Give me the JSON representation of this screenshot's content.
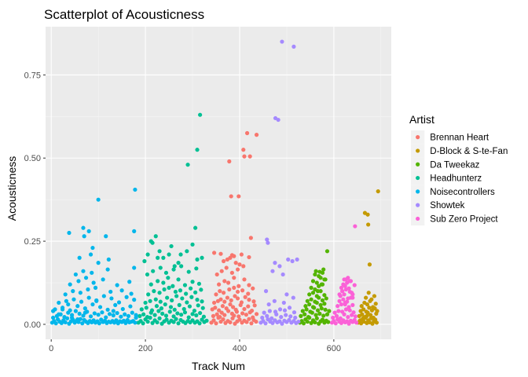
{
  "chart_data": {
    "type": "scatter",
    "title": "Scatterplot of Acousticness",
    "xlabel": "Track Num",
    "ylabel": "Acousticness",
    "xlim": [
      -12,
      722
    ],
    "ylim": [
      -0.045,
      0.895
    ],
    "xticks": [
      0,
      200,
      400,
      600
    ],
    "yticks": [
      0.0,
      0.25,
      0.5,
      0.75
    ],
    "ytick_labels": [
      "0.00",
      "0.25",
      "0.50",
      "0.75"
    ],
    "grid": true,
    "legend": {
      "title": "Artist",
      "position": "right"
    },
    "series": [
      {
        "name": "Brennan Heart",
        "color": "#F8766D",
        "x": [
          340,
          345,
          350,
          355,
          360,
          365,
          370,
          375,
          380,
          385,
          390,
          395,
          400,
          405,
          410,
          415,
          420,
          425,
          430,
          435,
          344,
          352,
          358,
          362,
          368,
          376,
          384,
          388,
          394,
          398,
          406,
          414,
          422,
          428,
          436,
          342,
          348,
          356,
          364,
          372,
          380,
          386,
          392,
          402,
          410,
          418,
          426,
          432,
          346,
          354,
          360,
          368,
          374,
          382,
          390,
          396,
          404,
          412,
          420,
          430,
          350,
          358,
          366,
          378,
          388,
          396,
          406,
          418,
          428,
          356,
          368,
          376,
          388,
          398,
          410,
          420,
          352,
          362,
          372,
          384,
          396,
          408,
          366,
          380,
          392,
          404,
          374,
          388,
          400,
          346,
          360,
          384,
          420,
          378,
          382,
          398,
          408,
          410,
          416,
          422,
          436,
          424
        ],
        "y": [
          0.005,
          0.012,
          0.003,
          0.02,
          0.008,
          0.015,
          0.004,
          0.01,
          0.006,
          0.018,
          0.002,
          0.009,
          0.014,
          0.005,
          0.011,
          0.007,
          0.016,
          0.003,
          0.013,
          0.008,
          0.025,
          0.03,
          0.022,
          0.035,
          0.028,
          0.04,
          0.032,
          0.026,
          0.038,
          0.024,
          0.033,
          0.029,
          0.036,
          0.021,
          0.031,
          0.045,
          0.05,
          0.042,
          0.055,
          0.048,
          0.06,
          0.052,
          0.044,
          0.058,
          0.046,
          0.054,
          0.041,
          0.057,
          0.065,
          0.07,
          0.075,
          0.068,
          0.08,
          0.072,
          0.085,
          0.078,
          0.066,
          0.082,
          0.074,
          0.069,
          0.09,
          0.1,
          0.095,
          0.105,
          0.11,
          0.098,
          0.102,
          0.092,
          0.108,
          0.12,
          0.13,
          0.125,
          0.14,
          0.115,
          0.135,
          0.118,
          0.15,
          0.16,
          0.17,
          0.155,
          0.165,
          0.175,
          0.19,
          0.2,
          0.185,
          0.21,
          0.195,
          0.205,
          0.18,
          0.215,
          0.212,
          0.208,
          0.202,
          0.49,
          0.385,
          0.385,
          0.525,
          0.505,
          0.575,
          0.505,
          0.57,
          0.26
        ]
      },
      {
        "name": "D-Block & S-te-Fan",
        "color": "#C49A00",
        "x": [
          652,
          655,
          658,
          661,
          664,
          667,
          670,
          673,
          676,
          679,
          682,
          685,
          688,
          691,
          654,
          660,
          666,
          672,
          678,
          684,
          690,
          657,
          663,
          669,
          675,
          681,
          687,
          659,
          671,
          683,
          665,
          677,
          689,
          668,
          680,
          686,
          674,
          692,
          656,
          662,
          670,
          673,
          676,
          666,
          672,
          694
        ],
        "y": [
          0.005,
          0.01,
          0.003,
          0.015,
          0.008,
          0.02,
          0.004,
          0.012,
          0.006,
          0.018,
          0.002,
          0.009,
          0.014,
          0.005,
          0.025,
          0.03,
          0.022,
          0.035,
          0.028,
          0.02,
          0.032,
          0.04,
          0.045,
          0.038,
          0.05,
          0.042,
          0.048,
          0.055,
          0.06,
          0.052,
          0.065,
          0.07,
          0.062,
          0.08,
          0.075,
          0.085,
          0.095,
          0.04,
          0.012,
          0.018,
          0.025,
          0.3,
          0.18,
          0.335,
          0.33,
          0.4
        ]
      },
      {
        "name": "Da Tweekaz",
        "color": "#53B400",
        "x": [
          528,
          532,
          536,
          540,
          544,
          548,
          552,
          556,
          560,
          564,
          568,
          572,
          576,
          580,
          584,
          588,
          530,
          538,
          546,
          554,
          562,
          570,
          578,
          586,
          534,
          542,
          550,
          558,
          566,
          574,
          582,
          590,
          540,
          548,
          556,
          564,
          572,
          580,
          544,
          552,
          560,
          568,
          576,
          584,
          548,
          556,
          564,
          572,
          580,
          552,
          560,
          568,
          576,
          556,
          564,
          572,
          580,
          560,
          568,
          576,
          562,
          570,
          578,
          566,
          574,
          582,
          586
        ],
        "y": [
          0.005,
          0.01,
          0.003,
          0.015,
          0.008,
          0.02,
          0.004,
          0.012,
          0.006,
          0.018,
          0.002,
          0.009,
          0.014,
          0.005,
          0.011,
          0.007,
          0.025,
          0.03,
          0.022,
          0.035,
          0.028,
          0.032,
          0.026,
          0.03,
          0.04,
          0.045,
          0.038,
          0.05,
          0.042,
          0.048,
          0.044,
          0.04,
          0.055,
          0.06,
          0.052,
          0.065,
          0.058,
          0.062,
          0.07,
          0.075,
          0.068,
          0.08,
          0.072,
          0.078,
          0.09,
          0.095,
          0.085,
          0.1,
          0.088,
          0.11,
          0.105,
          0.115,
          0.12,
          0.13,
          0.125,
          0.14,
          0.135,
          0.15,
          0.145,
          0.155,
          0.16,
          0.158,
          0.165,
          0.1,
          0.12,
          0.135,
          0.22
        ]
      },
      {
        "name": "Headhunterz",
        "color": "#00C094",
        "x": [
          185,
          190,
          195,
          200,
          205,
          210,
          215,
          220,
          225,
          230,
          235,
          240,
          245,
          250,
          255,
          260,
          265,
          270,
          275,
          280,
          285,
          290,
          295,
          300,
          305,
          310,
          315,
          320,
          325,
          330,
          188,
          196,
          204,
          212,
          220,
          228,
          236,
          244,
          252,
          260,
          268,
          276,
          284,
          292,
          300,
          308,
          316,
          324,
          192,
          202,
          214,
          224,
          234,
          242,
          254,
          262,
          272,
          282,
          294,
          304,
          312,
          322,
          200,
          210,
          222,
          232,
          246,
          256,
          266,
          278,
          288,
          298,
          310,
          320,
          206,
          218,
          230,
          240,
          250,
          264,
          274,
          286,
          296,
          306,
          318,
          212,
          226,
          238,
          248,
          258,
          270,
          284,
          300,
          314,
          204,
          216,
          232,
          244,
          260,
          276,
          292,
          308,
          198,
          226,
          250,
          270,
          288,
          310,
          320,
          205,
          215,
          222,
          230,
          238,
          255,
          262,
          275,
          290,
          300,
          306,
          310,
          316,
          212
        ],
        "y": [
          0.005,
          0.01,
          0.003,
          0.015,
          0.008,
          0.02,
          0.004,
          0.012,
          0.006,
          0.018,
          0.002,
          0.009,
          0.014,
          0.005,
          0.011,
          0.007,
          0.016,
          0.003,
          0.013,
          0.008,
          0.004,
          0.01,
          0.006,
          0.012,
          0.005,
          0.009,
          0.003,
          0.014,
          0.007,
          0.011,
          0.025,
          0.03,
          0.022,
          0.035,
          0.028,
          0.04,
          0.032,
          0.026,
          0.038,
          0.024,
          0.033,
          0.029,
          0.036,
          0.021,
          0.031,
          0.027,
          0.034,
          0.023,
          0.045,
          0.05,
          0.042,
          0.055,
          0.048,
          0.06,
          0.052,
          0.044,
          0.058,
          0.046,
          0.054,
          0.041,
          0.057,
          0.049,
          0.065,
          0.07,
          0.075,
          0.068,
          0.08,
          0.072,
          0.085,
          0.078,
          0.066,
          0.082,
          0.074,
          0.069,
          0.09,
          0.1,
          0.095,
          0.105,
          0.11,
          0.098,
          0.102,
          0.092,
          0.108,
          0.096,
          0.104,
          0.12,
          0.13,
          0.125,
          0.14,
          0.115,
          0.135,
          0.118,
          0.128,
          0.122,
          0.15,
          0.16,
          0.17,
          0.155,
          0.165,
          0.175,
          0.158,
          0.168,
          0.19,
          0.2,
          0.21,
          0.185,
          0.22,
          0.195,
          0.2,
          0.21,
          0.245,
          0.265,
          0.22,
          0.2,
          0.235,
          0.175,
          0.21,
          0.48,
          0.24,
          0.29,
          0.525,
          0.63,
          0.25
        ]
      },
      {
        "name": "Noisecontrollers",
        "color": "#00B6EB",
        "x": [
          2,
          6,
          10,
          14,
          18,
          22,
          26,
          30,
          34,
          38,
          42,
          46,
          50,
          54,
          58,
          62,
          66,
          70,
          74,
          78,
          82,
          86,
          90,
          94,
          98,
          102,
          106,
          110,
          114,
          118,
          122,
          126,
          130,
          134,
          138,
          142,
          146,
          150,
          154,
          158,
          162,
          166,
          170,
          174,
          178,
          4,
          12,
          20,
          28,
          36,
          44,
          52,
          60,
          68,
          76,
          84,
          92,
          100,
          108,
          116,
          124,
          132,
          140,
          148,
          156,
          164,
          172,
          180,
          8,
          24,
          40,
          56,
          72,
          88,
          104,
          120,
          136,
          152,
          168,
          16,
          32,
          48,
          64,
          80,
          96,
          112,
          128,
          144,
          160,
          176,
          30,
          46,
          62,
          78,
          94,
          126,
          150,
          170,
          40,
          58,
          74,
          90,
          110,
          140,
          166,
          52,
          68,
          86,
          120,
          176,
          60,
          84,
          100,
          122,
          38,
          88,
          68,
          80,
          70,
          116,
          176,
          100,
          178,
          4,
          16,
          24,
          36,
          44,
          56,
          72,
          96,
          132,
          180
        ],
        "y": [
          0.005,
          0.01,
          0.003,
          0.015,
          0.008,
          0.004,
          0.012,
          0.006,
          0.018,
          0.002,
          0.009,
          0.014,
          0.005,
          0.011,
          0.007,
          0.016,
          0.003,
          0.013,
          0.008,
          0.004,
          0.01,
          0.006,
          0.012,
          0.005,
          0.009,
          0.003,
          0.014,
          0.007,
          0.011,
          0.004,
          0.008,
          0.006,
          0.01,
          0.005,
          0.012,
          0.003,
          0.009,
          0.007,
          0.011,
          0.004,
          0.013,
          0.006,
          0.008,
          0.01,
          0.005,
          0.02,
          0.025,
          0.03,
          0.022,
          0.035,
          0.028,
          0.04,
          0.032,
          0.026,
          0.038,
          0.024,
          0.033,
          0.029,
          0.036,
          0.021,
          0.031,
          0.027,
          0.034,
          0.023,
          0.03,
          0.025,
          0.035,
          0.028,
          0.045,
          0.05,
          0.042,
          0.055,
          0.048,
          0.06,
          0.052,
          0.044,
          0.058,
          0.046,
          0.054,
          0.065,
          0.07,
          0.075,
          0.068,
          0.08,
          0.072,
          0.085,
          0.078,
          0.066,
          0.082,
          0.074,
          0.09,
          0.1,
          0.095,
          0.105,
          0.11,
          0.098,
          0.102,
          0.092,
          0.12,
          0.13,
          0.14,
          0.125,
          0.135,
          0.118,
          0.128,
          0.15,
          0.16,
          0.155,
          0.165,
          0.17,
          0.2,
          0.21,
          0.185,
          0.195,
          0.275,
          0.23,
          0.29,
          0.28,
          0.265,
          0.265,
          0.28,
          0.375,
          0.405,
          0.04,
          0.03,
          0.045,
          0.06,
          0.02,
          0.015,
          0.035,
          0.07,
          0.04,
          0.02
        ]
      },
      {
        "name": "Showtek",
        "color": "#A58AFF",
        "x": [
          445,
          450,
          455,
          460,
          465,
          470,
          475,
          480,
          485,
          490,
          495,
          500,
          505,
          510,
          515,
          520,
          525,
          448,
          458,
          468,
          478,
          488,
          498,
          508,
          518,
          452,
          464,
          476,
          486,
          496,
          506,
          516,
          462,
          474,
          494,
          514,
          456,
          500,
          470,
          492,
          512,
          460,
          458,
          475,
          503,
          485,
          522,
          490,
          515,
          482,
          476
        ],
        "y": [
          0.005,
          0.01,
          0.003,
          0.015,
          0.008,
          0.004,
          0.012,
          0.006,
          0.009,
          0.002,
          0.011,
          0.007,
          0.013,
          0.005,
          0.01,
          0.004,
          0.008,
          0.02,
          0.025,
          0.018,
          0.03,
          0.022,
          0.028,
          0.024,
          0.02,
          0.035,
          0.04,
          0.038,
          0.045,
          0.042,
          0.05,
          0.036,
          0.06,
          0.07,
          0.065,
          0.08,
          0.1,
          0.09,
          0.16,
          0.15,
          0.19,
          0.245,
          0.255,
          0.185,
          0.195,
          0.175,
          0.195,
          0.85,
          0.835,
          0.615,
          0.62
        ]
      },
      {
        "name": "Sub Zero Project",
        "color": "#FB61D7",
        "x": [
          596,
          600,
          604,
          608,
          612,
          616,
          620,
          624,
          628,
          632,
          636,
          640,
          644,
          648,
          598,
          606,
          614,
          622,
          630,
          638,
          646,
          602,
          610,
          618,
          626,
          634,
          642,
          608,
          616,
          624,
          632,
          640,
          612,
          620,
          628,
          636,
          614,
          622,
          630,
          638,
          618,
          626,
          634,
          616,
          624,
          632,
          620,
          628,
          636,
          644,
          622,
          630,
          612,
          618,
          626,
          634,
          640,
          624,
          640,
          645
        ],
        "y": [
          0.005,
          0.01,
          0.003,
          0.015,
          0.008,
          0.004,
          0.012,
          0.006,
          0.009,
          0.002,
          0.011,
          0.007,
          0.013,
          0.005,
          0.02,
          0.025,
          0.018,
          0.03,
          0.022,
          0.028,
          0.024,
          0.035,
          0.04,
          0.038,
          0.045,
          0.042,
          0.036,
          0.055,
          0.06,
          0.065,
          0.052,
          0.058,
          0.07,
          0.075,
          0.068,
          0.08,
          0.085,
          0.09,
          0.078,
          0.095,
          0.1,
          0.105,
          0.098,
          0.11,
          0.115,
          0.108,
          0.12,
          0.125,
          0.13,
          0.118,
          0.135,
          0.14,
          0.09,
          0.1,
          0.135,
          0.13,
          0.08,
          0.06,
          0.09,
          0.295
        ]
      }
    ]
  }
}
